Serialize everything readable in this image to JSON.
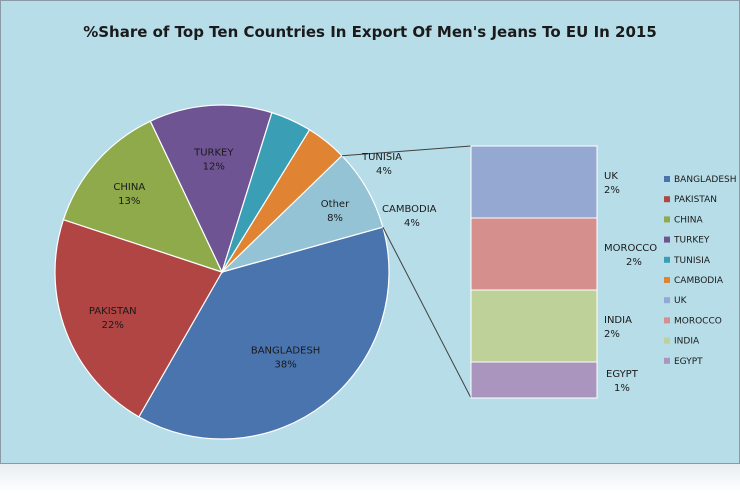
{
  "chart_data": {
    "type": "pie",
    "title": "%Share of Top Ten Countries In Export Of Men's Jeans To EU In 2015",
    "slices": [
      {
        "label": "BANGLADESH",
        "value": 38,
        "pct_label": "38%",
        "color": "#4a74ad"
      },
      {
        "label": "PAKISTAN",
        "value": 22,
        "pct_label": "22%",
        "color": "#b14543"
      },
      {
        "label": "CHINA",
        "value": 13,
        "pct_label": "13%",
        "color": "#8eaa4b"
      },
      {
        "label": "TURKEY",
        "value": 12,
        "pct_label": "12%",
        "color": "#6f5494"
      },
      {
        "label": "TUNISIA",
        "value": 4,
        "pct_label": "4%",
        "color": "#3a9fb5"
      },
      {
        "label": "CAMBODIA",
        "value": 4,
        "pct_label": "4%",
        "color": "#e08433"
      },
      {
        "label": "Other",
        "value": 8,
        "pct_label": "8%",
        "color": "#94c3d6"
      }
    ],
    "other_breakdown": [
      {
        "label": "UK",
        "value": 2,
        "pct_label": "2%",
        "color": "#94a8d2"
      },
      {
        "label": "MOROCCO",
        "value": 2,
        "pct_label": "2%",
        "color": "#d58f8c"
      },
      {
        "label": "INDIA",
        "value": 2,
        "pct_label": "2%",
        "color": "#bdd198"
      },
      {
        "label": "EGYPT",
        "value": 1,
        "pct_label": "1%",
        "color": "#a995be"
      }
    ],
    "legend": {
      "placement": "right",
      "items": [
        {
          "label": "BANGLADESH",
          "color": "#4a74ad"
        },
        {
          "label": "PAKISTAN",
          "color": "#b14543"
        },
        {
          "label": "CHINA",
          "color": "#8eaa4b"
        },
        {
          "label": "TURKEY",
          "color": "#6f5494"
        },
        {
          "label": "TUNISIA",
          "color": "#3a9fb5"
        },
        {
          "label": "CAMBODIA",
          "color": "#e08433"
        },
        {
          "label": "UK",
          "color": "#94a8d2"
        },
        {
          "label": "MOROCCO",
          "color": "#d58f8c"
        },
        {
          "label": "INDIA",
          "color": "#bdd198"
        },
        {
          "label": "EGYPT",
          "color": "#a995be"
        }
      ]
    }
  },
  "background_color": "#b7dde8"
}
